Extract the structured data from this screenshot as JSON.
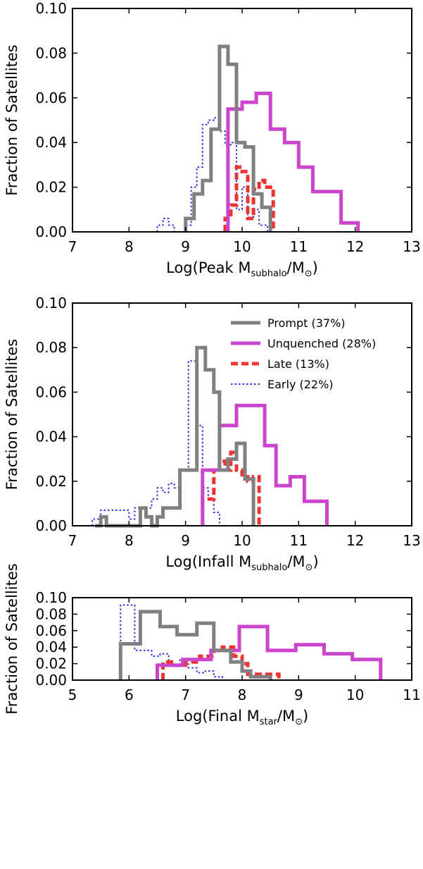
{
  "chart_data": [
    {
      "type": "histogram-step",
      "xlabel_prefix": "Log(Peak M",
      "xlabel_sub1": "subhalo",
      "xlabel_mid": "/M",
      "xlabel_sub2": "⊙",
      "xlabel_suffix": ")",
      "ylabel": "Fraction of Satellites",
      "xlim": [
        7,
        13
      ],
      "ylim": [
        0,
        0.1
      ],
      "xticks": [
        "7",
        "8",
        "9",
        "10",
        "11",
        "12",
        "13"
      ],
      "yticks": [
        "0.00",
        "0.02",
        "0.04",
        "0.06",
        "0.08",
        "0.10"
      ],
      "series": [
        {
          "key": "prompt",
          "color": "#808080",
          "style": "solid",
          "x": [
            9.0,
            9.15,
            9.3,
            9.45,
            9.6,
            9.75,
            9.9,
            10.05,
            10.2,
            10.35,
            10.5
          ],
          "y": [
            0.006,
            0.017,
            0.023,
            0.046,
            0.083,
            0.075,
            0.04,
            0.038,
            0.017,
            0.011,
            0
          ]
        },
        {
          "key": "unquenched",
          "color": "#cc44cc",
          "style": "solid",
          "x": [
            9.75,
            10.0,
            10.25,
            10.5,
            10.75,
            11.0,
            11.25,
            11.5,
            11.75,
            12.05
          ],
          "y": [
            0.055,
            0.058,
            0.062,
            0.046,
            0.04,
            0.029,
            0.018,
            0.018,
            0.004,
            0
          ]
        },
        {
          "key": "late",
          "color": "#ee3333",
          "style": "dashed",
          "x": [
            9.7,
            9.8,
            9.9,
            10.0,
            10.1,
            10.2,
            10.3,
            10.4,
            10.55
          ],
          "y": [
            0.006,
            0.012,
            0.029,
            0.027,
            0.006,
            0.019,
            0.023,
            0.02,
            0
          ]
        },
        {
          "key": "early",
          "color": "#3333dd",
          "style": "dotted",
          "x": [
            8.5,
            8.6,
            8.7,
            8.8,
            9.0,
            9.1,
            9.2,
            9.3,
            9.4,
            9.5,
            9.6,
            9.7,
            9.8,
            9.9,
            10.0,
            10.1,
            10.2,
            10.3,
            10.45
          ],
          "y": [
            0.003,
            0.006,
            0.003,
            0.0,
            0.003,
            0.02,
            0.029,
            0.048,
            0.05,
            0.051,
            0.045,
            0.039,
            0.04,
            0.01,
            0.02,
            0.006,
            0.01,
            0.003,
            0
          ]
        }
      ]
    },
    {
      "type": "histogram-step",
      "xlabel_prefix": "Log(Infall M",
      "xlabel_sub1": "subhalo",
      "xlabel_mid": "/M",
      "xlabel_sub2": "⊙",
      "xlabel_suffix": ")",
      "ylabel": "Fraction of Satellites",
      "xlim": [
        7,
        13
      ],
      "ylim": [
        0,
        0.1
      ],
      "xticks": [
        "7",
        "8",
        "9",
        "10",
        "11",
        "12",
        "13"
      ],
      "yticks": [
        "0.00",
        "0.02",
        "0.04",
        "0.06",
        "0.08",
        "0.10"
      ],
      "legend_position": "top-right",
      "legend": [
        {
          "label": "Prompt (37%)",
          "color": "#808080",
          "style": "solid"
        },
        {
          "label": "Unquenched (28%)",
          "color": "#cc44cc",
          "style": "solid"
        },
        {
          "label": "Late (13%)",
          "color": "#ee3333",
          "style": "dashed"
        },
        {
          "label": "Early (22%)",
          "color": "#3333dd",
          "style": "dotted"
        }
      ],
      "series": [
        {
          "key": "prompt",
          "color": "#808080",
          "style": "solid",
          "x": [
            7.4,
            7.5,
            7.6,
            8.2,
            8.3,
            8.4,
            8.5,
            8.6,
            8.9,
            9.1,
            9.2,
            9.35,
            9.5,
            9.6,
            9.75,
            9.9,
            10.05,
            10.2
          ],
          "y": [
            0,
            0.004,
            0,
            0.008,
            0.004,
            0.0,
            0.004,
            0.008,
            0.025,
            0.025,
            0.08,
            0.07,
            0.06,
            0.025,
            0.03,
            0.037,
            0.021,
            0
          ]
        },
        {
          "key": "unquenched",
          "color": "#cc44cc",
          "style": "solid",
          "x": [
            9.3,
            9.6,
            9.9,
            10.4,
            10.6,
            10.85,
            11.1,
            11.3,
            11.5
          ],
          "y": [
            0.025,
            0.045,
            0.054,
            0.036,
            0.018,
            0.022,
            0.011,
            0.011,
            0
          ]
        },
        {
          "key": "late",
          "color": "#ee3333",
          "style": "dashed",
          "x": [
            9.3,
            9.5,
            9.6,
            9.7,
            9.8,
            9.9,
            10.0,
            10.1,
            10.2,
            10.3
          ],
          "y": [
            0.012,
            0.025,
            0.029,
            0.025,
            0.033,
            0.025,
            0.022,
            0.02,
            0.022,
            0
          ]
        },
        {
          "key": "early",
          "color": "#3333dd",
          "style": "dotted",
          "x": [
            7.35,
            7.5,
            7.8,
            8.0,
            8.1,
            8.4,
            8.5,
            8.6,
            8.7,
            8.8,
            8.9,
            9.05,
            9.2,
            9.3,
            9.4,
            9.5,
            9.6
          ],
          "y": [
            0.003,
            0.007,
            0.007,
            0.003,
            0.008,
            0.012,
            0.017,
            0.015,
            0.019,
            0.017,
            0.025,
            0.074,
            0.045,
            0.017,
            0.012,
            0.006,
            0
          ]
        }
      ]
    },
    {
      "type": "histogram-step",
      "xlabel_prefix": "Log(Final M",
      "xlabel_sub1": "star",
      "xlabel_mid": "/M",
      "xlabel_sub2": "⊙",
      "xlabel_suffix": ")",
      "ylabel": "Fraction of Satellites",
      "xlim": [
        5,
        11
      ],
      "ylim": [
        0,
        0.1
      ],
      "xticks": [
        "5",
        "6",
        "7",
        "8",
        "9",
        "10",
        "11"
      ],
      "yticks": [
        "0.00",
        "0.02",
        "0.04",
        "0.06",
        "0.08",
        "0.10"
      ],
      "series": [
        {
          "key": "prompt",
          "color": "#808080",
          "style": "solid",
          "x": [
            5.85,
            6.2,
            6.55,
            6.85,
            7.2,
            7.5,
            7.8,
            8.0,
            8.15,
            8.5
          ],
          "y": [
            0.044,
            0.083,
            0.065,
            0.055,
            0.069,
            0.036,
            0.022,
            0.011,
            0.004,
            0
          ]
        },
        {
          "key": "unquenched",
          "color": "#cc44cc",
          "style": "solid",
          "x": [
            6.5,
            6.95,
            7.45,
            7.95,
            8.45,
            8.95,
            9.45,
            9.95,
            10.45
          ],
          "y": [
            0.018,
            0.025,
            0.036,
            0.065,
            0.036,
            0.043,
            0.032,
            0.025,
            0
          ]
        },
        {
          "key": "late",
          "color": "#ee3333",
          "style": "dashed",
          "x": [
            6.6,
            6.75,
            7.0,
            7.25,
            7.5,
            7.65,
            7.85,
            8.0,
            8.1,
            8.25,
            8.65
          ],
          "y": [
            0.022,
            0.018,
            0.022,
            0.029,
            0.036,
            0.04,
            0.029,
            0.02,
            0.007,
            0.007,
            0
          ]
        },
        {
          "key": "early",
          "color": "#3333dd",
          "style": "dotted",
          "x": [
            5.85,
            6.1,
            6.4,
            6.55,
            6.7,
            6.9,
            7.05,
            7.2,
            7.35,
            7.5,
            7.65
          ],
          "y": [
            0.091,
            0.036,
            0.029,
            0.032,
            0.017,
            0.026,
            0.015,
            0.009,
            0.011,
            0.004,
            0
          ]
        }
      ]
    }
  ]
}
